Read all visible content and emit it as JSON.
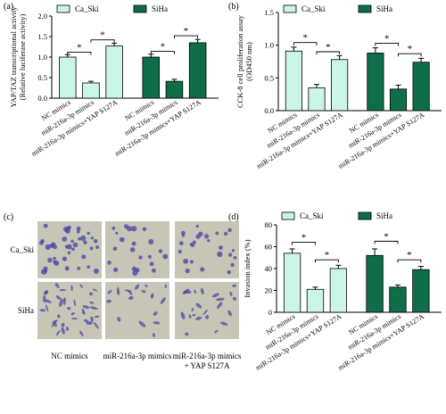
{
  "colors": {
    "ca_ski": "#ccf5ea",
    "siha": "#0f6e48",
    "micrograph_bg": "#c7c6b6",
    "cell_stain": "#4c4aa6"
  },
  "panels": {
    "a": {
      "label": "(a)"
    },
    "b": {
      "label": "(b)"
    },
    "c": {
      "label": "(c)"
    },
    "d": {
      "label": "(d)"
    }
  },
  "micrographs": {
    "rows": [
      "Ca_Ski",
      "SiHa"
    ],
    "cols": [
      "NC mimics",
      "miR-216a-3p mimics",
      "miR-216a-3p mimics",
      "+ YAP S127A"
    ]
  },
  "chart_data": [
    {
      "id": "a",
      "type": "bar",
      "ylabel": [
        "YAP/TAZ transcriptional activity",
        "(Relative luciferase activity)"
      ],
      "ylim": [
        0,
        2.0
      ],
      "yticks": [
        "0.0",
        "0.5",
        "1.0",
        "1.5",
        "2.0"
      ],
      "categories": [
        "NC mimics",
        "miR-216a-3p mimics",
        "miR-216a-3p mimics+YAP S127A"
      ],
      "series": [
        {
          "name": "Ca_Ski",
          "values": [
            1.0,
            0.37,
            1.27
          ],
          "errors": [
            0.06,
            0.04,
            0.07
          ]
        },
        {
          "name": "SiHa",
          "values": [
            1.0,
            0.41,
            1.35
          ],
          "errors": [
            0.07,
            0.05,
            0.08
          ]
        }
      ],
      "significance": [
        {
          "series": 0,
          "from": 0,
          "to": 1,
          "label": "*",
          "level": 1.12
        },
        {
          "series": 0,
          "from": 1,
          "to": 2,
          "label": "*",
          "level": 1.42
        },
        {
          "series": 1,
          "from": 0,
          "to": 1,
          "label": "*",
          "level": 1.14
        },
        {
          "series": 1,
          "from": 1,
          "to": 2,
          "label": "*",
          "level": 1.52
        }
      ]
    },
    {
      "id": "b",
      "type": "bar",
      "ylabel": [
        "CCK-8 cell proliferation assay",
        "(OD450 nm)"
      ],
      "ylim": [
        0,
        1.5
      ],
      "yticks": [
        "0.0",
        "0.5",
        "1.0",
        "1.5"
      ],
      "categories": [
        "NC mimics",
        "miR-216a-3p mimics",
        "miR-216a-3p mimics+YAP S127A"
      ],
      "series": [
        {
          "name": "Ca_Ski",
          "values": [
            0.91,
            0.35,
            0.78
          ],
          "errors": [
            0.06,
            0.05,
            0.06
          ]
        },
        {
          "name": "SiHa",
          "values": [
            0.88,
            0.33,
            0.74
          ],
          "errors": [
            0.08,
            0.06,
            0.06
          ]
        }
      ],
      "significance": [
        {
          "series": 0,
          "from": 0,
          "to": 1,
          "label": "*",
          "level": 1.04
        },
        {
          "series": 0,
          "from": 1,
          "to": 2,
          "label": "*",
          "level": 0.9
        },
        {
          "series": 1,
          "from": 0,
          "to": 1,
          "label": "*",
          "level": 1.03
        },
        {
          "series": 1,
          "from": 1,
          "to": 2,
          "label": "*",
          "level": 0.87
        }
      ]
    },
    {
      "id": "d",
      "type": "bar",
      "ylabel": [
        "Invasion index (%)"
      ],
      "ylim": [
        0,
        80
      ],
      "yticks": [
        "0",
        "20",
        "40",
        "60",
        "80"
      ],
      "categories": [
        "NC mimics",
        "miR-216a-3p mimics",
        "miR-216a-3p mimics+YAP S127A"
      ],
      "series": [
        {
          "name": "Ca_Ski",
          "values": [
            54,
            21,
            40
          ],
          "errors": [
            4,
            2,
            3
          ]
        },
        {
          "name": "SiHa",
          "values": [
            52,
            23,
            39
          ],
          "errors": [
            6,
            2,
            3
          ]
        }
      ],
      "significance": [
        {
          "series": 0,
          "from": 0,
          "to": 1,
          "label": "*",
          "level": 64
        },
        {
          "series": 0,
          "from": 1,
          "to": 2,
          "label": "*",
          "level": 48
        },
        {
          "series": 1,
          "from": 0,
          "to": 1,
          "label": "*",
          "level": 65
        },
        {
          "series": 1,
          "from": 1,
          "to": 2,
          "label": "*",
          "level": 48
        }
      ]
    }
  ]
}
